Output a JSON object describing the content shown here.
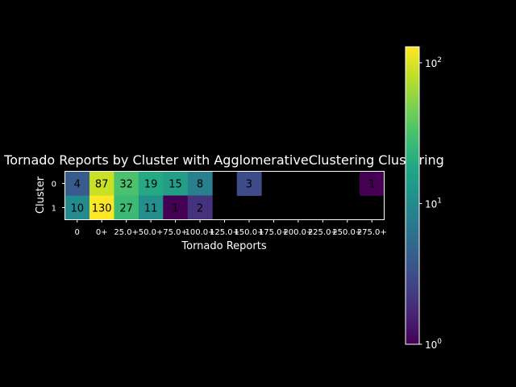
{
  "chart_data": {
    "type": "heatmap",
    "title": "Tornado Reports by Cluster with AgglomerativeClustering Clustering",
    "xlabel": "Tornado Reports",
    "ylabel": "Cluster",
    "x_categories": [
      "0",
      "0+",
      "25.0+",
      "50.0+",
      "75.0+",
      "100.0+",
      "125.0+",
      "150.0+",
      "175.0+",
      "200.0+",
      "225.0+",
      "250.0+",
      "275.0+"
    ],
    "y_categories": [
      "0",
      "1"
    ],
    "values": [
      [
        4,
        87,
        32,
        19,
        15,
        8,
        null,
        3,
        null,
        null,
        null,
        null,
        1
      ],
      [
        10,
        130,
        27,
        11,
        1,
        2,
        null,
        null,
        null,
        null,
        null,
        null,
        null
      ]
    ],
    "colorbar": {
      "scale": "log",
      "colormap": "viridis",
      "range": [
        1,
        130
      ],
      "ticks": [
        {
          "value": 1,
          "base": "10",
          "exp": "0"
        },
        {
          "value": 10,
          "base": "10",
          "exp": "1"
        },
        {
          "value": 100,
          "base": "10",
          "exp": "2"
        }
      ]
    },
    "grid": false,
    "background_color": "#000000",
    "text_color": "#ffffff"
  }
}
